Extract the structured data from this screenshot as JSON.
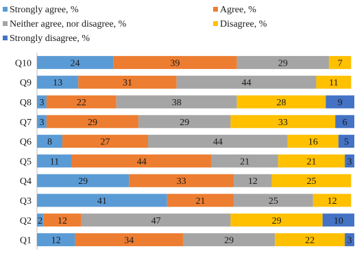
{
  "chart_data": {
    "type": "bar",
    "orientation": "horizontal",
    "stacked": true,
    "categories": [
      "Q10",
      "Q9",
      "Q8",
      "Q7",
      "Q6",
      "Q5",
      "Q4",
      "Q3",
      "Q2",
      "Q1"
    ],
    "series": [
      {
        "name": "Strongly agree, %",
        "color": "#5B9BD5",
        "values": [
          24,
          13,
          3,
          3,
          8,
          11,
          29,
          41,
          2,
          12
        ]
      },
      {
        "name": "Agree, %",
        "color": "#ED7D31",
        "values": [
          39,
          31,
          22,
          29,
          27,
          44,
          33,
          21,
          12,
          34
        ]
      },
      {
        "name": "Neither agree, nor disagree, %",
        "color": "#A5A5A5",
        "values": [
          29,
          44,
          38,
          29,
          44,
          21,
          12,
          25,
          47,
          29
        ]
      },
      {
        "name": "Disagree, %",
        "color": "#FFC000",
        "values": [
          7,
          11,
          28,
          33,
          16,
          21,
          25,
          12,
          29,
          22
        ]
      },
      {
        "name": "Strongly disagree, %",
        "color": "#4472C4",
        "values": [
          0,
          0,
          9,
          6,
          5,
          3,
          0,
          0,
          10,
          3
        ]
      }
    ],
    "xlim": [
      0,
      100
    ],
    "grid": false,
    "legend_position": "top"
  }
}
